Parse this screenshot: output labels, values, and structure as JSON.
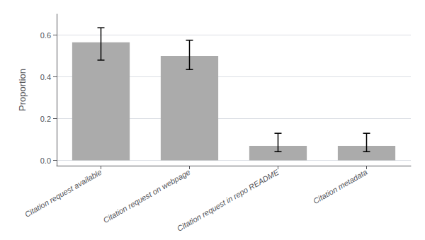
{
  "chart_data": {
    "type": "bar",
    "categories": [
      "Citation request available",
      "Citation request on webpage",
      "Citation request in repo README",
      "Citation metadata"
    ],
    "values": [
      0.565,
      0.5,
      0.07,
      0.07
    ],
    "errors_lower": [
      0.085,
      0.065,
      0.028,
      0.028
    ],
    "errors_upper": [
      0.07,
      0.075,
      0.06,
      0.06
    ],
    "color": "#ABABAB",
    "ylabel": "Proportion",
    "ylim": [
      -0.025,
      0.7
    ],
    "yticks": [
      {
        "value": 0.0,
        "label": "0.0"
      },
      0.2,
      0.4,
      0.6
    ],
    "grid": true
  }
}
